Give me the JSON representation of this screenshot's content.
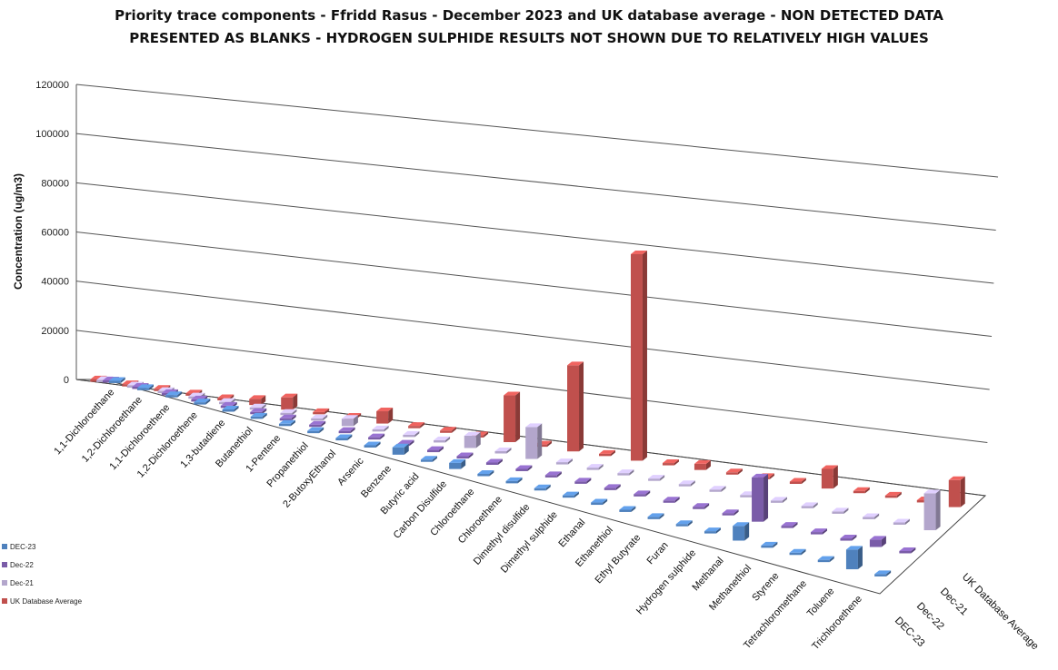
{
  "chart_data": {
    "type": "bar",
    "title_lines": [
      "Priority trace components - Ffridd Rasus - December 2023 and UK database average - NON DETECTED DATA",
      "PRESENTED AS BLANKS - HYDROGEN SULPHIDE RESULTS NOT SHOWN DUE TO RELATIVELY HIGH VALUES"
    ],
    "ylabel": "Concentration (ug/m3)",
    "xlabel": "",
    "ylim": [
      0,
      120000
    ],
    "yticks": [
      "0",
      "20000",
      "40000",
      "60000",
      "80000",
      "100000",
      "120000"
    ],
    "grid": true,
    "legend_position": "bottom-left",
    "categories": [
      "1,1-Dichloroethane",
      "1,2-Dichloroethane",
      "1,1-Dichloroethene",
      "1,2-Dichloroethene",
      "1,3-butadiene",
      "Butanethiol",
      "1-Pentene",
      "Propanethiol",
      "2-ButoxyEthanol",
      "Arsenic",
      "Benzene",
      "Butyric acid",
      "Carbon Disulfide",
      "Chloroethane",
      "Chloroethene",
      "Dimethyl disulfide",
      "Dimethyl sulphide",
      "Ethanal",
      "Ethanethiol",
      "Ethyl Butyrate",
      "Furan",
      "Hydrogen sulphide",
      "Methanal",
      "Methanethiol",
      "Styrene",
      "Tetrachloromethane",
      "Toluene",
      "Trichloroethene"
    ],
    "series_depth_labels": [
      "UK Database Average",
      "Dec-21",
      "Dec-22",
      "DEC-23"
    ],
    "series": [
      {
        "name": "DEC-23",
        "color": "#4f81bd",
        "values": [
          0,
          0,
          0,
          0,
          0,
          0,
          0,
          0,
          0,
          0,
          3000,
          0,
          2500,
          0,
          0,
          0,
          0,
          0,
          0,
          0,
          0,
          0,
          6000,
          0,
          0,
          0,
          8000,
          0
        ]
      },
      {
        "name": "Dec-22",
        "color": "#7a5ca8",
        "values": [
          0,
          0,
          0,
          0,
          0,
          0,
          0,
          0,
          0,
          0,
          0,
          0,
          0,
          0,
          0,
          0,
          0,
          0,
          0,
          0,
          0,
          0,
          18000,
          0,
          0,
          0,
          3000,
          0
        ]
      },
      {
        "name": "Dec-21",
        "color": "#b3a6cc",
        "values": [
          0,
          0,
          0,
          0,
          0,
          0,
          0,
          0,
          3000,
          0,
          0,
          0,
          5000,
          0,
          13000,
          0,
          0,
          0,
          0,
          0,
          0,
          0,
          0,
          0,
          0,
          0,
          0,
          15000
        ]
      },
      {
        "name": "UK Database Average",
        "color": "#c0504d",
        "values": [
          1000,
          0,
          0,
          0,
          0,
          2500,
          5000,
          0,
          0,
          5000,
          0,
          0,
          0,
          19000,
          0,
          35000,
          0,
          84000,
          0,
          2500,
          0,
          0,
          0,
          8000,
          0,
          0,
          0,
          11000
        ]
      }
    ]
  }
}
